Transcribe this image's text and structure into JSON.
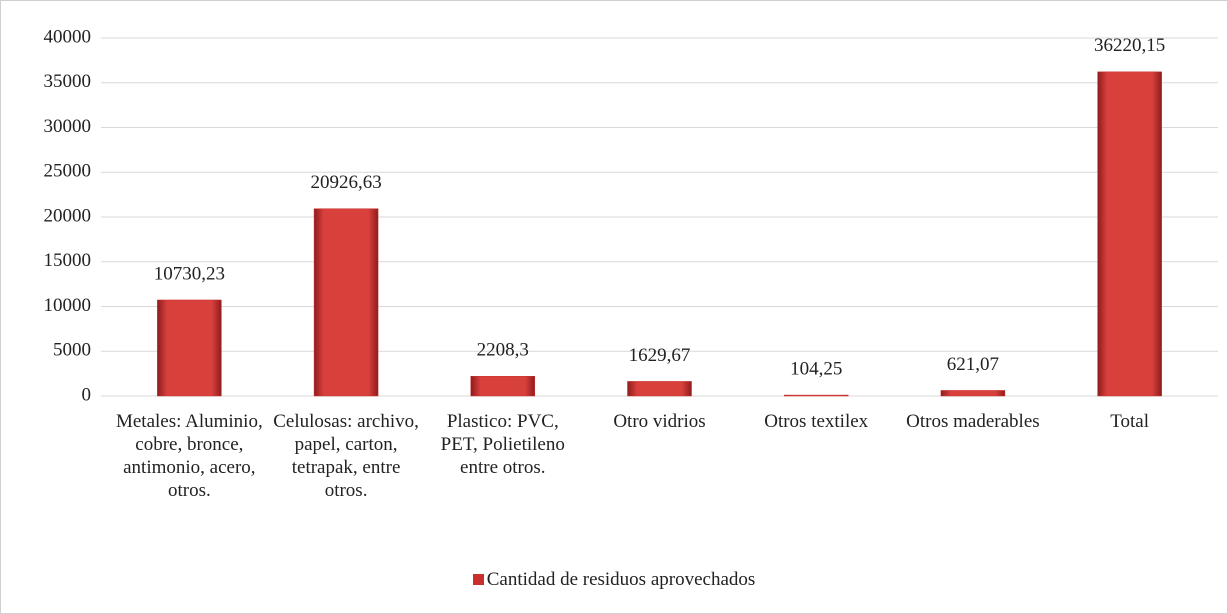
{
  "chart_data": {
    "type": "bar",
    "categories": [
      "Metales: Aluminio, cobre, bronce, antimonio, acero, otros.",
      "Celulosas: archivo, papel, carton, tetrapak, entre otros.",
      "Plastico: PVC, PET, Polietileno entre otros.",
      "Otro vidrios",
      "Otros textilex",
      "Otros maderables",
      "Total"
    ],
    "series": [
      {
        "name": "Cantidad de residuos aprovechados",
        "color": "#c9302c",
        "values": [
          10730.23,
          20926.63,
          2208.3,
          1629.67,
          104.25,
          621.07,
          36220.15
        ],
        "value_labels": [
          "10730,23",
          "20926,63",
          "2208,3",
          "1629,67",
          "104,25",
          "621,07",
          "36220,15"
        ]
      }
    ],
    "ylim": [
      0,
      40000
    ],
    "yticks": [
      0,
      5000,
      10000,
      15000,
      20000,
      25000,
      30000,
      35000,
      40000
    ],
    "grid": true,
    "legend": "bottom"
  }
}
